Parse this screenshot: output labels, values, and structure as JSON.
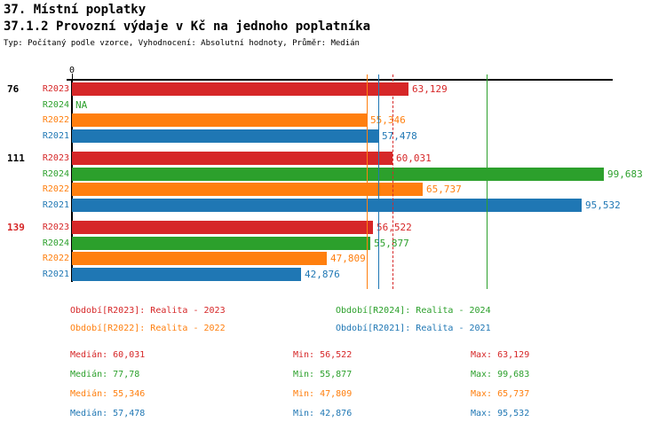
{
  "header": {
    "title": "37. Místní poplatky",
    "subtitle": "37.1.2 Provozní výdaje v Kč na jednoho poplatníka",
    "meta": "Typ: Počítaný podle vzorce, Vyhodnocení: Absolutní hodnoty, Průměr: Medián"
  },
  "chart_data": {
    "type": "bar",
    "orientation": "horizontal",
    "title": "37.1.2 Provozní výdaje v Kč na jednoho poplatníka",
    "unit": "Kč",
    "x_axis": {
      "zero_label": "0",
      "min": 0,
      "max": 101400,
      "gridlines": false
    },
    "series": [
      {
        "id": "R2023",
        "label": "R2023",
        "color": "#d62728",
        "legend_label": "Období[R2023]: Realita - 2023",
        "median": 60031,
        "median_line_style": "dashed",
        "median_display": "Medián: 60,031",
        "min_display": "Min: 56,522",
        "max_display": "Max: 63,129"
      },
      {
        "id": "R2024",
        "label": "R2024",
        "color": "#2ca02c",
        "legend_label": "Období[R2024]: Realita - 2024",
        "median": 77780,
        "median_line_style": "solid",
        "median_display": "Medián: 77,78",
        "min_display": "Min: 55,877",
        "max_display": "Max: 99,683"
      },
      {
        "id": "R2022",
        "label": "R2022",
        "color": "#ff7f0e",
        "legend_label": "Období[R2022]: Realita - 2022",
        "median": 55346,
        "median_line_style": "solid",
        "median_display": "Medián: 55,346",
        "min_display": "Min: 47,809",
        "max_display": "Max: 65,737"
      },
      {
        "id": "R2021",
        "label": "R2021",
        "color": "#1f77b4",
        "legend_label": "Období[R2021]: Realita - 2021",
        "median": 57478,
        "median_line_style": "solid",
        "median_display": "Medián: 57,478",
        "min_display": "Min: 42,876",
        "max_display": "Max: 95,532"
      }
    ],
    "groups": [
      {
        "label": "76",
        "label_color": "#000000",
        "bars": [
          {
            "series": "R2023",
            "value": 63129,
            "display": "63,129"
          },
          {
            "series": "R2024",
            "value": null,
            "display": "NA"
          },
          {
            "series": "R2022",
            "value": 55346,
            "display": "55,346"
          },
          {
            "series": "R2021",
            "value": 57478,
            "display": "57,478"
          }
        ]
      },
      {
        "label": "111",
        "label_color": "#000000",
        "bars": [
          {
            "series": "R2023",
            "value": 60031,
            "display": "60,031"
          },
          {
            "series": "R2024",
            "value": 99683,
            "display": "99,683"
          },
          {
            "series": "R2022",
            "value": 65737,
            "display": "65,737"
          },
          {
            "series": "R2021",
            "value": 95532,
            "display": "95,532"
          }
        ]
      },
      {
        "label": "139",
        "label_color": "#d62728",
        "bars": [
          {
            "series": "R2023",
            "value": 56522,
            "display": "56,522"
          },
          {
            "series": "R2024",
            "value": 55877,
            "display": "55,877"
          },
          {
            "series": "R2022",
            "value": 47809,
            "display": "47,809"
          },
          {
            "series": "R2021",
            "value": 42876,
            "display": "42,876"
          }
        ]
      }
    ],
    "legend_layout": [
      [
        "R2023",
        "R2024"
      ],
      [
        "R2022",
        "R2021"
      ]
    ],
    "stats_order": [
      "R2023",
      "R2024",
      "R2022",
      "R2021"
    ]
  }
}
